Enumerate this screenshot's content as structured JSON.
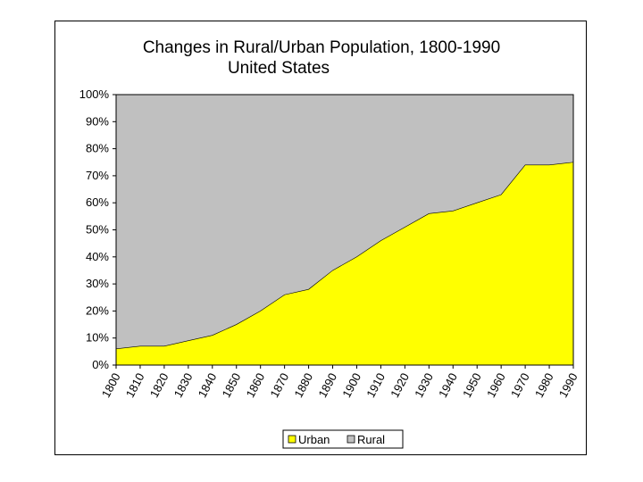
{
  "chart_data": {
    "type": "area",
    "title": "Changes in Rural/Urban Population, 1800-1990",
    "subtitle": "United States",
    "x": [
      "1800",
      "1810",
      "1820",
      "1830",
      "1840",
      "1850",
      "1860",
      "1870",
      "1880",
      "1890",
      "1900",
      "1910",
      "1920",
      "1930",
      "1940",
      "1950",
      "1960",
      "1970",
      "1980",
      "1990"
    ],
    "stacked_percent": true,
    "series": [
      {
        "name": "Urban",
        "color": "#ffff00",
        "values": [
          6,
          7,
          7,
          9,
          11,
          15,
          20,
          26,
          28,
          35,
          40,
          46,
          51,
          56,
          57,
          60,
          63,
          74,
          74,
          75
        ]
      },
      {
        "name": "Rural",
        "color": "#c0c0c0",
        "values": [
          94,
          93,
          93,
          91,
          89,
          85,
          80,
          74,
          72,
          65,
          60,
          54,
          49,
          44,
          43,
          40,
          37,
          26,
          26,
          25
        ]
      }
    ],
    "y_ticks": [
      "0%",
      "10%",
      "20%",
      "30%",
      "40%",
      "50%",
      "60%",
      "70%",
      "80%",
      "90%",
      "100%"
    ],
    "ylim": [
      0,
      100
    ],
    "legend": "bottom",
    "grid": false
  }
}
